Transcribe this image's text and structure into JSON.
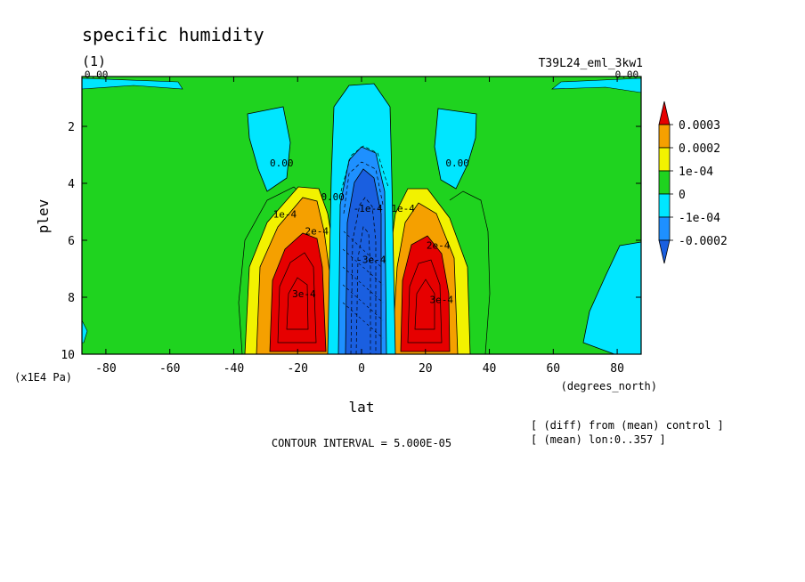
{
  "chart_data": {
    "type": "contour",
    "title": "specific humidity",
    "panel_label": "(1)",
    "experiment": "T39L24_eml_3kw1",
    "xlabel": "lat",
    "xunits": "(degrees_north)",
    "ylabel": "plev",
    "yunits": "(x1E4 Pa)",
    "x_ticks": [
      -80,
      -60,
      -40,
      -20,
      0,
      20,
      40,
      60,
      80
    ],
    "y_ticks": [
      2,
      4,
      6,
      8,
      10
    ],
    "xlim": [
      -87.5,
      87.5
    ],
    "ylim": [
      10,
      0.25
    ],
    "contour_interval_text": "CONTOUR INTERVAL = 5.000E-05",
    "notes": [
      "[ (diff) from (mean) control ]",
      "[ (mean) lon:0..357 ]"
    ],
    "colorbar": {
      "labels": [
        "0.0003",
        "0.0002",
        "1e-04",
        "0",
        "-1e-04",
        "-0.0002"
      ],
      "colors": [
        "#e60000",
        "#f5a000",
        "#f2f200",
        "#1fd31f",
        "#00e6ff",
        "#1e90ff",
        "#1a5fe0"
      ]
    },
    "contour_labels": [
      {
        "text": "0.00",
        "lat": -83,
        "p": 0.3
      },
      {
        "text": "0.00",
        "lat": 83,
        "p": 0.3
      },
      {
        "text": "0.00",
        "lat": -25,
        "p": 3.4
      },
      {
        "text": "0.00",
        "lat": 30,
        "p": 3.4
      },
      {
        "text": "1e-4",
        "lat": -24,
        "p": 5.2
      },
      {
        "text": "2e-4",
        "lat": -14,
        "p": 5.8
      },
      {
        "text": "3e-4",
        "lat": -18,
        "p": 8.0
      },
      {
        "text": "1e-4",
        "lat": 13,
        "p": 5.0
      },
      {
        "text": "2e-4",
        "lat": 24,
        "p": 6.3
      },
      {
        "text": "3e-4",
        "lat": 25,
        "p": 8.2
      },
      {
        "text": "0.00",
        "lat": -9,
        "p": 4.6
      },
      {
        "text": "-1e-4",
        "lat": 2,
        "p": 5.0
      },
      {
        "text": "-3e-4",
        "lat": 3,
        "p": 6.8
      }
    ]
  }
}
